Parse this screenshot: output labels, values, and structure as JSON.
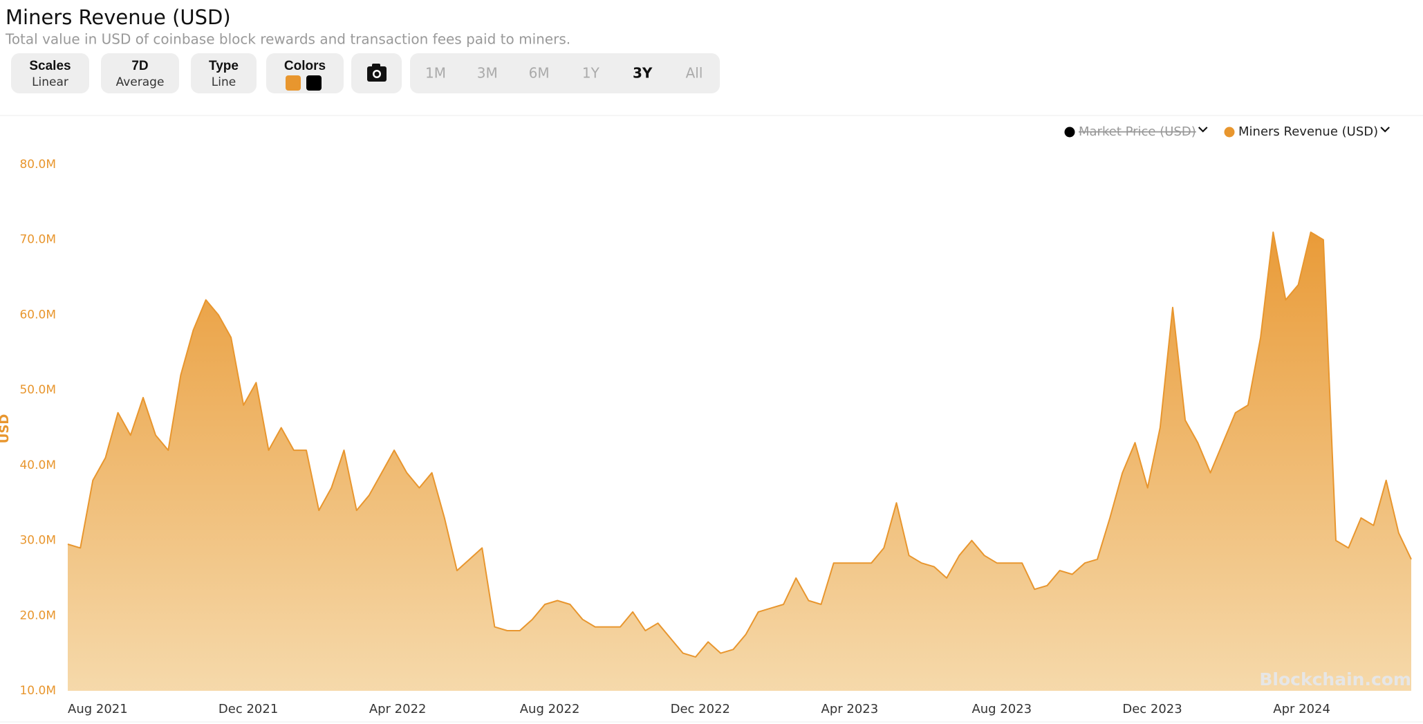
{
  "chart_data": {
    "type": "area",
    "title": "Miners Revenue (USD)",
    "subtitle": "Total value in USD of coinbase block rewards and transaction fees paid to miners.",
    "y_label": "USD",
    "watermark": "Blockchain.com",
    "toolbar": [
      {
        "title": "Scales",
        "sub": "Linear"
      },
      {
        "title": "7D",
        "sub": "Average"
      },
      {
        "title": "Type",
        "sub": "Line"
      },
      {
        "title": "Colors"
      }
    ],
    "ranges": [
      "1M",
      "3M",
      "6M",
      "1Y",
      "3Y",
      "All"
    ],
    "active_range_index": 4,
    "ylim": [
      10,
      80
    ],
    "yticks": [
      {
        "value": 10,
        "label": "10.0M"
      },
      {
        "value": 20,
        "label": "20.0M"
      },
      {
        "value": 30,
        "label": "30.0M"
      },
      {
        "value": 40,
        "label": "40.0M"
      },
      {
        "value": 50,
        "label": "50.0M"
      },
      {
        "value": 60,
        "label": "60.0M"
      },
      {
        "value": 70,
        "label": "70.0M"
      },
      {
        "value": 80,
        "label": "80.0M"
      }
    ],
    "categories": [
      "Aug 2021",
      null,
      null,
      null,
      null,
      null,
      null,
      null,
      null,
      null,
      null,
      null,
      "Dec 2021",
      null,
      null,
      null,
      null,
      null,
      null,
      null,
      null,
      null,
      null,
      null,
      "Apr 2022",
      null,
      null,
      null,
      null,
      null,
      null,
      null,
      null,
      null,
      null,
      null,
      "Aug 2022",
      null,
      null,
      null,
      null,
      null,
      null,
      null,
      null,
      null,
      null,
      null,
      "Dec 2022",
      null,
      null,
      null,
      null,
      null,
      null,
      null,
      null,
      null,
      null,
      null,
      "Apr 2023",
      null,
      null,
      null,
      null,
      null,
      null,
      null,
      null,
      null,
      null,
      null,
      "Aug 2023",
      null,
      null,
      null,
      null,
      null,
      null,
      null,
      null,
      null,
      null,
      null,
      "Dec 2023",
      null,
      null,
      null,
      null,
      null,
      null,
      null,
      null,
      null,
      null,
      null,
      "Apr 2024",
      null,
      null,
      null,
      null,
      null,
      null,
      null,
      null,
      null,
      null,
      null
    ],
    "series": [
      {
        "name": "Miners Revenue (USD)",
        "color": "#e8962e",
        "values": [
          29.5,
          29,
          38,
          41,
          47,
          44,
          49,
          44,
          42,
          52,
          58,
          62,
          60,
          57,
          48,
          51,
          42,
          45,
          42,
          42,
          34,
          37,
          42,
          34,
          36,
          39,
          42,
          39,
          37,
          39,
          33,
          26,
          27.5,
          29,
          18.5,
          18,
          18,
          19.5,
          21.5,
          22,
          21.5,
          19.5,
          18.5,
          18.5,
          18.5,
          20.5,
          18,
          19,
          17,
          15,
          14.5,
          16.5,
          15,
          15.5,
          17.5,
          20.5,
          21,
          21.5,
          25,
          22,
          21.5,
          27,
          27,
          27,
          27,
          29,
          35,
          28,
          27,
          26.5,
          25,
          28,
          30,
          28,
          27,
          27,
          27,
          23.5,
          24,
          26,
          25.5,
          27,
          27.5,
          33,
          39,
          43,
          37,
          45,
          61,
          46,
          43,
          39,
          43,
          47,
          48,
          57,
          71,
          62,
          64,
          71,
          70,
          30,
          29,
          33,
          32,
          38,
          31,
          27.5
        ]
      }
    ],
    "hidden_series": [
      {
        "name": "Market Price (USD)",
        "color": "#000000"
      }
    ]
  }
}
